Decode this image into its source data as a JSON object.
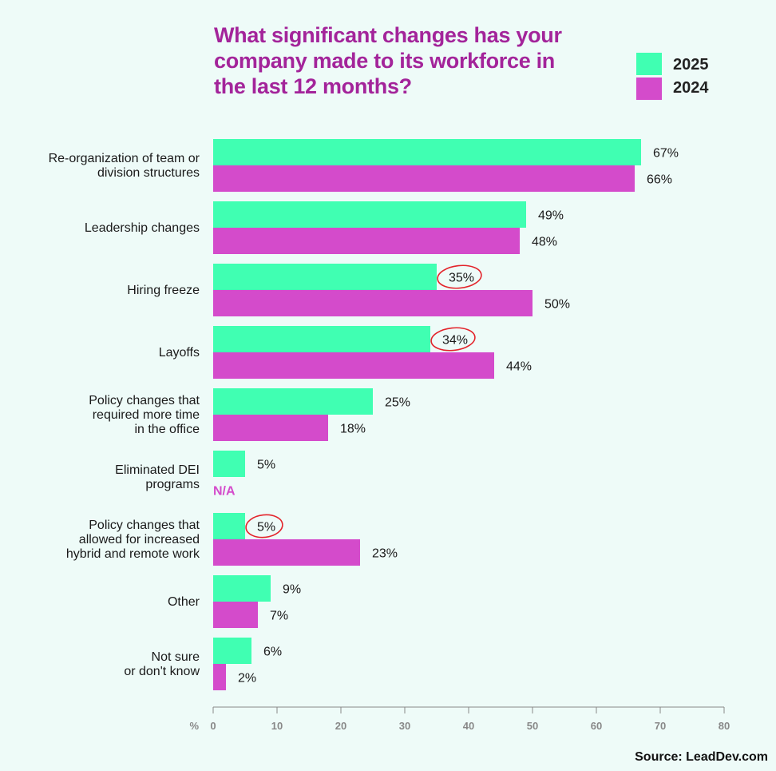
{
  "title_lines": [
    "What significant changes has your",
    "company made to its workforce in",
    "the last 12 months?"
  ],
  "legend": [
    {
      "label": "2025",
      "color": "#40ffb2"
    },
    {
      "label": "2024",
      "color": "#d44bcb"
    }
  ],
  "source": "Source: LeadDev.com",
  "chart_data": {
    "type": "bar",
    "orientation": "horizontal",
    "title": "What significant changes has your company made to its workforce in the last 12 months?",
    "xlabel": "%",
    "xlim": [
      0,
      80
    ],
    "xticks": [
      0,
      10,
      20,
      30,
      40,
      50,
      60,
      70,
      80
    ],
    "categories": [
      [
        "Re-organization of team or",
        "division structures"
      ],
      [
        "Leadership changes"
      ],
      [
        "Hiring freeze"
      ],
      [
        "Layoffs"
      ],
      [
        "Policy changes that",
        "required more time",
        "in the office"
      ],
      [
        "Eliminated DEI",
        "programs"
      ],
      [
        "Policy changes that",
        "allowed for increased",
        "hybrid and remote work"
      ],
      [
        "Other"
      ],
      [
        "Not sure",
        "or don't know"
      ]
    ],
    "series": [
      {
        "name": "2025",
        "color": "#40ffb2",
        "values": [
          67,
          49,
          35,
          34,
          25,
          5,
          5,
          9,
          6
        ],
        "labels": [
          "67%",
          "49%",
          "35%",
          "34%",
          "25%",
          "5%",
          "5%",
          "9%",
          "6%"
        ]
      },
      {
        "name": "2024",
        "color": "#d44bcb",
        "values": [
          66,
          48,
          50,
          44,
          18,
          null,
          23,
          7,
          2
        ],
        "labels": [
          "66%",
          "48%",
          "50%",
          "44%",
          "18%",
          "N/A",
          "23%",
          "7%",
          "2%"
        ]
      }
    ],
    "circled": [
      [
        0,
        2
      ],
      [
        0,
        3
      ],
      [
        0,
        6
      ]
    ]
  }
}
